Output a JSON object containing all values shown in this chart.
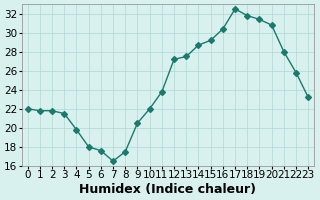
{
  "x": [
    0,
    1,
    2,
    3,
    4,
    5,
    6,
    7,
    8,
    9,
    10,
    11,
    12,
    13,
    14,
    15,
    16,
    17,
    18,
    19,
    20,
    21,
    22,
    23
  ],
  "y": [
    22,
    21.8,
    21.8,
    21.5,
    19.8,
    18.0,
    17.6,
    16.5,
    17.5,
    20.5,
    22.0,
    23.8,
    27.2,
    27.5,
    28.7,
    29.2,
    30.4,
    32.5,
    31.8,
    31.4,
    30.8,
    28.0,
    25.8,
    23.2
  ],
  "xlabel": "Humidex (Indice chaleur)",
  "ylabel": "",
  "xlim": [
    -0.5,
    23.5
  ],
  "ylim": [
    16,
    33
  ],
  "yticks": [
    16,
    18,
    20,
    22,
    24,
    26,
    28,
    30,
    32
  ],
  "xticks": [
    0,
    1,
    2,
    3,
    4,
    5,
    6,
    7,
    8,
    9,
    10,
    11,
    12,
    13,
    14,
    15,
    16,
    17,
    18,
    19,
    20,
    21,
    22,
    23
  ],
  "line_color": "#1a7a6e",
  "marker": "D",
  "marker_size": 3,
  "bg_color": "#d8f0ee",
  "grid_color": "#b0d8d4",
  "axes_bg": "#d8f0ee",
  "fig_bg": "#d8f0ee",
  "xlabel_fontsize": 9,
  "tick_fontsize": 7.5
}
